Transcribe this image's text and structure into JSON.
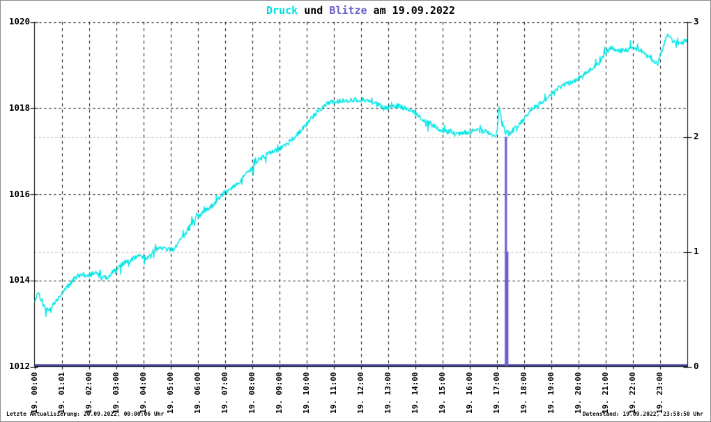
{
  "window_title": "Druck und Blitze am 19.09.2022",
  "title": {
    "parts": [
      {
        "text": "Druck",
        "color": "#00dede"
      },
      {
        "text": " und ",
        "color": "#000000"
      },
      {
        "text": "Blitze",
        "color": "#6a5fd0"
      },
      {
        "text": " am 19.09.2022",
        "color": "#000000"
      }
    ]
  },
  "footer": {
    "left": "Letzte Aktualisierung: 20.09.2022, 00:00:06 Uhr",
    "right": "Datenstand: 19.09.2022, 23:58:50 Uhr"
  },
  "chart_data": {
    "type": "line",
    "title": "Druck und Blitze am 19.09.2022",
    "grid": {
      "horizontal_dashed_black_at": [
        1014,
        1016,
        1018,
        1020
      ],
      "horizontal_dashed_gray_at_right_values": [
        1,
        2
      ],
      "vertical_dashed_hourly": true
    },
    "x_axis": {
      "unit": "hour of 19.09.2022",
      "range_hours": [
        0,
        24
      ],
      "tick_hours": [
        0,
        1,
        2,
        3,
        4,
        5,
        6,
        7,
        8,
        9,
        10,
        11,
        12,
        13,
        14,
        15,
        16,
        17,
        18,
        19,
        20,
        21,
        22,
        23
      ],
      "labels": [
        "19. 00:00",
        "19. 01:01",
        "19. 02:00",
        "19. 03:00",
        "19. 04:00",
        "19. 05:00",
        "19. 06:00",
        "19. 07:00",
        "19. 08:00",
        "19. 09:00",
        "19. 10:00",
        "19. 11:00",
        "19. 12:00",
        "19. 13:00",
        "19. 14:00",
        "19. 15:00",
        "19. 16:00",
        "19. 17:00",
        "19. 18:00",
        "19. 19:00",
        "19. 20:00",
        "19. 21:00",
        "19. 22:00",
        "19. 23:00"
      ]
    },
    "y_left": {
      "series": "Druck",
      "unit": "hPa",
      "range": [
        1012,
        1020
      ],
      "ticks": [
        1012,
        1014,
        1016,
        1018,
        1020
      ]
    },
    "y_right": {
      "series": "Blitze",
      "unit": "count",
      "range": [
        0,
        3
      ],
      "ticks": [
        0,
        1,
        2,
        3
      ]
    },
    "series": [
      {
        "name": "Druck",
        "axis": "left",
        "color": "#00e5e5",
        "style": "noisy line",
        "anchors_t_hours": [
          0,
          0.15,
          0.25,
          0.4,
          0.55,
          0.7,
          0.85,
          1.0,
          1.2,
          1.4,
          1.6,
          1.8,
          2.0,
          2.2,
          2.4,
          2.6,
          2.8,
          3.0,
          3.3,
          3.6,
          3.9,
          4.1,
          4.35,
          4.6,
          4.85,
          5.1,
          5.3,
          5.55,
          5.8,
          6.0,
          6.3,
          6.55,
          6.8,
          7.0,
          7.25,
          7.5,
          7.75,
          8.0,
          8.25,
          8.5,
          8.75,
          9.0,
          9.25,
          9.5,
          9.75,
          10.0,
          10.25,
          10.5,
          10.75,
          11.0,
          11.5,
          12.0,
          12.3,
          12.6,
          12.9,
          13.1,
          13.4,
          13.7,
          14.0,
          14.3,
          14.6,
          14.9,
          15.2,
          15.6,
          16.0,
          16.4,
          16.7,
          16.95,
          17.08,
          17.15,
          17.3,
          17.45,
          17.7,
          18.0,
          18.3,
          18.6,
          18.9,
          19.2,
          19.5,
          19.8,
          20.1,
          20.4,
          20.7,
          21.0,
          21.2,
          21.5,
          21.8,
          22.1,
          22.4,
          22.7,
          22.9,
          23.05,
          23.25,
          23.45,
          23.7,
          23.9,
          24.0
        ],
        "anchors_hpa": [
          1013.5,
          1013.75,
          1013.5,
          1013.33,
          1013.3,
          1013.45,
          1013.55,
          1013.68,
          1013.85,
          1014.0,
          1014.1,
          1014.15,
          1014.1,
          1014.2,
          1014.1,
          1014.05,
          1014.15,
          1014.25,
          1014.42,
          1014.5,
          1014.58,
          1014.52,
          1014.68,
          1014.78,
          1014.72,
          1014.72,
          1014.88,
          1015.1,
          1015.35,
          1015.5,
          1015.62,
          1015.72,
          1015.92,
          1016.05,
          1016.15,
          1016.28,
          1016.45,
          1016.6,
          1016.8,
          1016.9,
          1017.0,
          1017.05,
          1017.15,
          1017.3,
          1017.45,
          1017.62,
          1017.82,
          1017.97,
          1018.1,
          1018.15,
          1018.18,
          1018.2,
          1018.15,
          1018.1,
          1018.0,
          1018.02,
          1018.06,
          1017.98,
          1017.88,
          1017.72,
          1017.62,
          1017.5,
          1017.45,
          1017.42,
          1017.45,
          1017.48,
          1017.42,
          1017.28,
          1018.02,
          1017.75,
          1017.45,
          1017.42,
          1017.55,
          1017.75,
          1018.0,
          1018.12,
          1018.28,
          1018.45,
          1018.55,
          1018.62,
          1018.72,
          1018.88,
          1019.0,
          1019.28,
          1019.4,
          1019.33,
          1019.35,
          1019.38,
          1019.3,
          1019.12,
          1019.0,
          1019.35,
          1019.7,
          1019.55,
          1019.5,
          1019.55,
          1019.62
        ],
        "noise_hpa": 0.06
      },
      {
        "name": "Blitze",
        "axis": "right",
        "color": "#6a5fd0",
        "baseline_color": "#2c2c96",
        "style": "impulses from zero baseline",
        "events": [
          {
            "t_hours": 17.32,
            "count": 2
          },
          {
            "t_hours": 17.37,
            "count": 1
          }
        ]
      }
    ],
    "colors": {
      "grid_black": "#000000",
      "grid_gray": "#c4c4c4",
      "axis": "#000000",
      "background": "#ffffff"
    }
  }
}
